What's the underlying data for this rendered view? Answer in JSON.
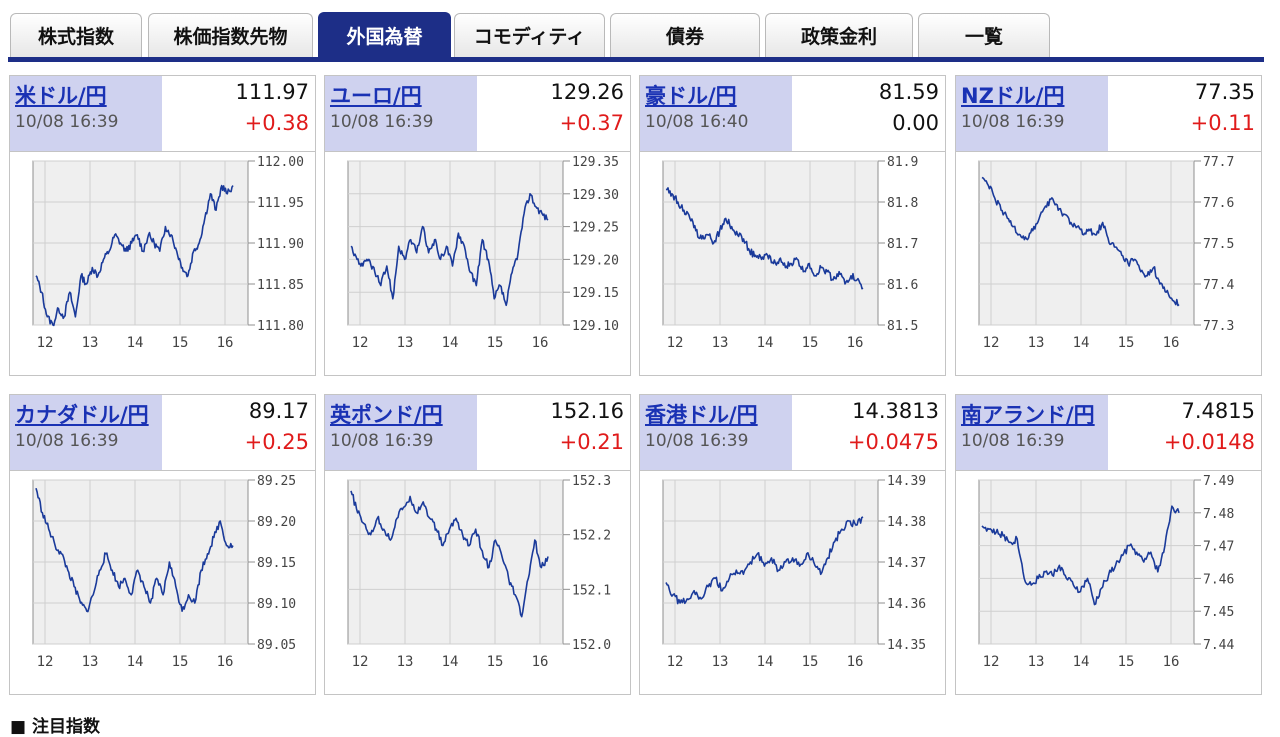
{
  "tabs": [
    {
      "label": "株式指数",
      "active": false
    },
    {
      "label": "株価指数先物",
      "active": false
    },
    {
      "label": "外国為替",
      "active": true
    },
    {
      "label": "コモディティ",
      "active": false
    },
    {
      "label": "債券",
      "active": false
    },
    {
      "label": "政策金利",
      "active": false
    },
    {
      "label": "一覧",
      "active": false
    }
  ],
  "cards": [
    {
      "name": "米ドル/円",
      "time": "10/08 16:39",
      "price": "111.97",
      "change": "+0.38",
      "direction": "up",
      "chart_data": {
        "type": "line",
        "x_ticks": [
          "12",
          "13",
          "14",
          "15",
          "16"
        ],
        "y_ticks": [
          "111.80",
          "111.85",
          "111.90",
          "111.95",
          "112.00"
        ],
        "ylim": [
          111.8,
          112.0
        ],
        "series": [
          {
            "values": [
              111.86,
              111.84,
              111.81,
              111.8,
              111.82,
              111.81,
              111.84,
              111.81,
              111.86,
              111.85,
              111.87,
              111.86,
              111.88,
              111.89,
              111.91,
              111.9,
              111.89,
              111.9,
              111.91,
              111.89,
              111.91,
              111.9,
              111.89,
              111.92,
              111.91,
              111.89,
              111.87,
              111.86,
              111.89,
              111.9,
              111.93,
              111.96,
              111.94,
              111.97,
              111.96,
              111.97
            ]
          }
        ]
      }
    },
    {
      "name": "ユーロ/円",
      "time": "10/08 16:39",
      "price": "129.26",
      "change": "+0.37",
      "direction": "up",
      "chart_data": {
        "type": "line",
        "x_ticks": [
          "12",
          "13",
          "14",
          "15",
          "16"
        ],
        "y_ticks": [
          "129.10",
          "129.15",
          "129.20",
          "129.25",
          "129.30",
          "129.35"
        ],
        "ylim": [
          129.1,
          129.35
        ],
        "series": [
          {
            "values": [
              129.22,
              129.2,
              129.19,
              129.2,
              129.18,
              129.16,
              129.19,
              129.14,
              129.22,
              129.2,
              129.23,
              129.21,
              129.25,
              129.21,
              129.23,
              129.2,
              129.22,
              129.19,
              129.24,
              129.22,
              129.18,
              129.16,
              129.23,
              129.2,
              129.14,
              129.16,
              129.13,
              129.18,
              129.21,
              129.27,
              129.3,
              129.28,
              129.27,
              129.26
            ]
          }
        ]
      }
    },
    {
      "name": "豪ドル/円",
      "time": "10/08 16:40",
      "price": "81.59",
      "change": "0.00",
      "direction": "flat",
      "chart_data": {
        "type": "line",
        "x_ticks": [
          "12",
          "13",
          "14",
          "15",
          "16"
        ],
        "y_ticks": [
          "81.5",
          "81.6",
          "81.7",
          "81.8",
          "81.9"
        ],
        "ylim": [
          81.5,
          81.9
        ],
        "series": [
          {
            "values": [
              81.83,
              81.82,
              81.8,
              81.78,
              81.76,
              81.73,
              81.71,
              81.72,
              81.7,
              81.73,
              81.76,
              81.74,
              81.72,
              81.71,
              81.68,
              81.67,
              81.66,
              81.67,
              81.65,
              81.66,
              81.64,
              81.65,
              81.66,
              81.63,
              81.65,
              81.62,
              81.64,
              81.63,
              81.61,
              81.63,
              81.6,
              81.62,
              81.61,
              81.59
            ]
          }
        ]
      }
    },
    {
      "name": "NZドル/円",
      "time": "10/08 16:39",
      "price": "77.35",
      "change": "+0.11",
      "direction": "up",
      "chart_data": {
        "type": "line",
        "x_ticks": [
          "12",
          "13",
          "14",
          "15",
          "16"
        ],
        "y_ticks": [
          "77.3",
          "77.4",
          "77.5",
          "77.6",
          "77.7"
        ],
        "ylim": [
          77.3,
          77.7
        ],
        "series": [
          {
            "values": [
              77.66,
              77.64,
              77.61,
              77.58,
              77.56,
              77.54,
              77.52,
              77.51,
              77.53,
              77.56,
              77.59,
              77.61,
              77.58,
              77.57,
              77.55,
              77.54,
              77.52,
              77.53,
              77.52,
              77.55,
              77.5,
              77.49,
              77.47,
              77.45,
              77.46,
              77.43,
              77.42,
              77.44,
              77.4,
              77.38,
              77.36,
              77.35
            ]
          }
        ]
      }
    },
    {
      "name": "カナダドル/円",
      "time": "10/08 16:39",
      "price": "89.17",
      "change": "+0.25",
      "direction": "up",
      "chart_data": {
        "type": "line",
        "x_ticks": [
          "12",
          "13",
          "14",
          "15",
          "16"
        ],
        "y_ticks": [
          "89.05",
          "89.10",
          "89.15",
          "89.20",
          "89.25"
        ],
        "ylim": [
          89.05,
          89.25
        ],
        "series": [
          {
            "values": [
              89.24,
              89.21,
              89.19,
              89.17,
              89.16,
              89.14,
              89.12,
              89.1,
              89.09,
              89.11,
              89.14,
              89.16,
              89.14,
              89.12,
              89.13,
              89.11,
              89.14,
              89.12,
              89.1,
              89.13,
              89.11,
              89.15,
              89.12,
              89.09,
              89.11,
              89.1,
              89.14,
              89.16,
              89.18,
              89.2,
              89.17,
              89.17
            ]
          }
        ]
      }
    },
    {
      "name": "英ポンド/円",
      "time": "10/08 16:39",
      "price": "152.16",
      "change": "+0.21",
      "direction": "up",
      "chart_data": {
        "type": "line",
        "x_ticks": [
          "12",
          "13",
          "14",
          "15",
          "16"
        ],
        "y_ticks": [
          "152.0",
          "152.1",
          "152.2",
          "152.3"
        ],
        "ylim": [
          152.0,
          152.3
        ],
        "series": [
          {
            "values": [
              152.28,
              152.24,
              152.22,
              152.2,
              152.23,
              152.21,
              152.19,
              152.23,
              152.25,
              152.27,
              152.24,
              152.26,
              152.23,
              152.21,
              152.18,
              152.21,
              152.23,
              152.2,
              152.18,
              152.21,
              152.17,
              152.14,
              152.19,
              152.16,
              152.12,
              152.09,
              152.05,
              152.12,
              152.19,
              152.14,
              152.16
            ]
          }
        ]
      }
    },
    {
      "name": "香港ドル/円",
      "time": "10/08 16:39",
      "price": "14.3813",
      "change": "+0.0475",
      "direction": "up",
      "chart_data": {
        "type": "line",
        "x_ticks": [
          "12",
          "13",
          "14",
          "15",
          "16"
        ],
        "y_ticks": [
          "14.35",
          "14.36",
          "14.37",
          "14.38",
          "14.39"
        ],
        "ylim": [
          14.35,
          14.39
        ],
        "series": [
          {
            "values": [
              14.365,
              14.362,
              14.36,
              14.361,
              14.363,
              14.361,
              14.364,
              14.366,
              14.363,
              14.366,
              14.368,
              14.367,
              14.37,
              14.372,
              14.369,
              14.371,
              14.368,
              14.37,
              14.371,
              14.369,
              14.372,
              14.37,
              14.367,
              14.371,
              14.375,
              14.378,
              14.38,
              14.379,
              14.381
            ]
          }
        ]
      }
    },
    {
      "name": "南アランド/円",
      "time": "10/08 16:39",
      "price": "7.4815",
      "change": "+0.0148",
      "direction": "up",
      "chart_data": {
        "type": "line",
        "x_ticks": [
          "12",
          "13",
          "14",
          "15",
          "16"
        ],
        "y_ticks": [
          "7.44",
          "7.45",
          "7.46",
          "7.47",
          "7.48",
          "7.49"
        ],
        "ylim": [
          7.44,
          7.49
        ],
        "series": [
          {
            "values": [
              7.476,
              7.475,
              7.474,
              7.473,
              7.471,
              7.472,
              7.46,
              7.458,
              7.46,
              7.462,
              7.461,
              7.464,
              7.46,
              7.458,
              7.456,
              7.46,
              7.452,
              7.457,
              7.461,
              7.464,
              7.467,
              7.47,
              7.468,
              7.465,
              7.468,
              7.462,
              7.47,
              7.482,
              7.48
            ]
          }
        ]
      }
    }
  ],
  "footer": {
    "heading": "■ 注目指数"
  }
}
